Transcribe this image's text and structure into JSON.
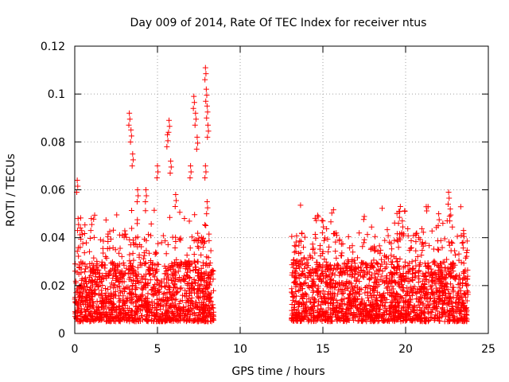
{
  "chart_data": {
    "type": "scatter",
    "title": "Day 009 of 2014, Rate Of TEC Index for receiver ntus",
    "xlabel": "GPS time / hours",
    "ylabel": "ROTI / TECUs",
    "xlim": [
      0,
      25
    ],
    "ylim": [
      0,
      0.12
    ],
    "xticks": [
      0,
      5,
      10,
      15,
      20,
      25
    ],
    "xtick_labels": [
      "0",
      "5",
      "10",
      "15",
      "20",
      "25"
    ],
    "yticks": [
      0,
      0.02,
      0.04,
      0.06,
      0.08,
      0.1,
      0.12
    ],
    "ytick_labels": [
      "0",
      "0.02",
      "0.04",
      "0.06",
      "0.08",
      "0.1",
      "0.12"
    ],
    "grid": true,
    "marker": "plus",
    "color": "#ff0000",
    "series": [
      {
        "name": "ROTI",
        "segments": [
          {
            "x_range": [
              0.0,
              8.4
            ],
            "typical_range": [
              0.005,
              0.03
            ]
          },
          {
            "x_range": [
              13.1,
              23.8
            ],
            "typical_range": [
              0.005,
              0.03
            ]
          }
        ],
        "notable_points": [
          {
            "x": 0.15,
            "y": 0.064
          },
          {
            "x": 0.2,
            "y": 0.048
          },
          {
            "x": 1.0,
            "y": 0.048
          },
          {
            "x": 3.3,
            "y": 0.092
          },
          {
            "x": 3.4,
            "y": 0.085
          },
          {
            "x": 3.5,
            "y": 0.075
          },
          {
            "x": 3.8,
            "y": 0.06
          },
          {
            "x": 4.3,
            "y": 0.06
          },
          {
            "x": 5.0,
            "y": 0.07
          },
          {
            "x": 5.6,
            "y": 0.083
          },
          {
            "x": 5.7,
            "y": 0.089
          },
          {
            "x": 5.8,
            "y": 0.072
          },
          {
            "x": 6.1,
            "y": 0.058
          },
          {
            "x": 7.0,
            "y": 0.07
          },
          {
            "x": 7.2,
            "y": 0.099
          },
          {
            "x": 7.3,
            "y": 0.092
          },
          {
            "x": 7.4,
            "y": 0.082
          },
          {
            "x": 7.9,
            "y": 0.111
          },
          {
            "x": 7.95,
            "y": 0.102
          },
          {
            "x": 8.0,
            "y": 0.095
          },
          {
            "x": 8.05,
            "y": 0.087
          },
          {
            "x": 7.9,
            "y": 0.07
          },
          {
            "x": 8.0,
            "y": 0.055
          },
          {
            "x": 15.0,
            "y": 0.047
          },
          {
            "x": 19.6,
            "y": 0.051
          },
          {
            "x": 19.8,
            "y": 0.047
          },
          {
            "x": 22.0,
            "y": 0.05
          },
          {
            "x": 22.6,
            "y": 0.059
          },
          {
            "x": 22.7,
            "y": 0.052
          },
          {
            "x": 23.5,
            "y": 0.043
          }
        ]
      }
    ]
  }
}
